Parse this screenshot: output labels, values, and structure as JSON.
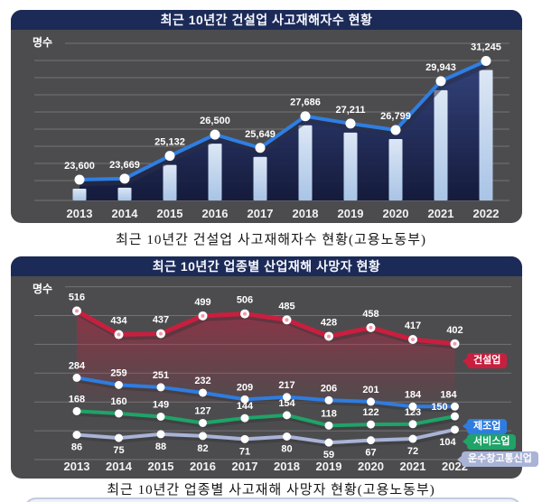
{
  "colors": {
    "page_bg": "#ffffff",
    "panel_bg": "#4c4c4e",
    "header_bg": "#1c2a57",
    "gridline": "rgba(255,255,255,0.22)",
    "bar_top": "#dce7f5",
    "bar_bottom": "#a9c4e6",
    "area_top": "#32427f",
    "area_bottom": "#10173a",
    "accent_line_blue": "#2f7ee2",
    "construction_red": "#c81f3f",
    "manufacturing_blue": "#2f7ce0",
    "services_green": "#1fa368",
    "transport_purple": "#a9b3d6"
  },
  "chart_data": [
    {
      "type": "bar",
      "subtype": "bar-with-line-overlay",
      "title": "최근 10년간 건설업 사고재해자수 현황",
      "ylabel": "명수",
      "xlabel": "",
      "grid": true,
      "legend_position": "none",
      "categories": [
        "2013",
        "2014",
        "2015",
        "2016",
        "2017",
        "2018",
        "2019",
        "2020",
        "2021",
        "2022"
      ],
      "values": [
        23600,
        23669,
        25132,
        26500,
        25649,
        27686,
        27211,
        26799,
        29943,
        31245
      ],
      "value_labels": [
        "23,600",
        "23,669",
        "25,132",
        "26,500",
        "25,649",
        "27,686",
        "27,211",
        "26,799",
        "29,943",
        "31,245"
      ],
      "ylim": [
        22000,
        32000
      ],
      "caption": "최근 10년간 건설업 사고재해자수 현황(고용노동부)"
    },
    {
      "type": "line",
      "title": "최근 10년간 업종별 산업재해 사망자 현황",
      "ylabel": "명수",
      "xlabel": "",
      "grid": true,
      "legend_position": "right",
      "categories": [
        "2013",
        "2014",
        "2015",
        "2016",
        "2017",
        "2018",
        "2019",
        "2020",
        "2021",
        "2022"
      ],
      "series": [
        {
          "name": "건설업",
          "color": "#c81f3f",
          "values": [
            516,
            434,
            437,
            499,
            506,
            485,
            428,
            458,
            417,
            402
          ]
        },
        {
          "name": "제조업",
          "color": "#2f7ce0",
          "values": [
            284,
            259,
            251,
            232,
            209,
            217,
            206,
            201,
            184,
            184
          ]
        },
        {
          "name": "서비스업",
          "color": "#1fa368",
          "values": [
            168,
            160,
            149,
            127,
            144,
            154,
            118,
            122,
            123,
            150
          ]
        },
        {
          "name": "운수창고통신업",
          "color": "#a9b3d6",
          "values": [
            86,
            75,
            88,
            82,
            71,
            80,
            59,
            67,
            72,
            104
          ]
        }
      ],
      "ylim": [
        0,
        600
      ],
      "caption": "최근 10년간 업종별 사고재해 사망자 현황(고용노동부)"
    }
  ]
}
